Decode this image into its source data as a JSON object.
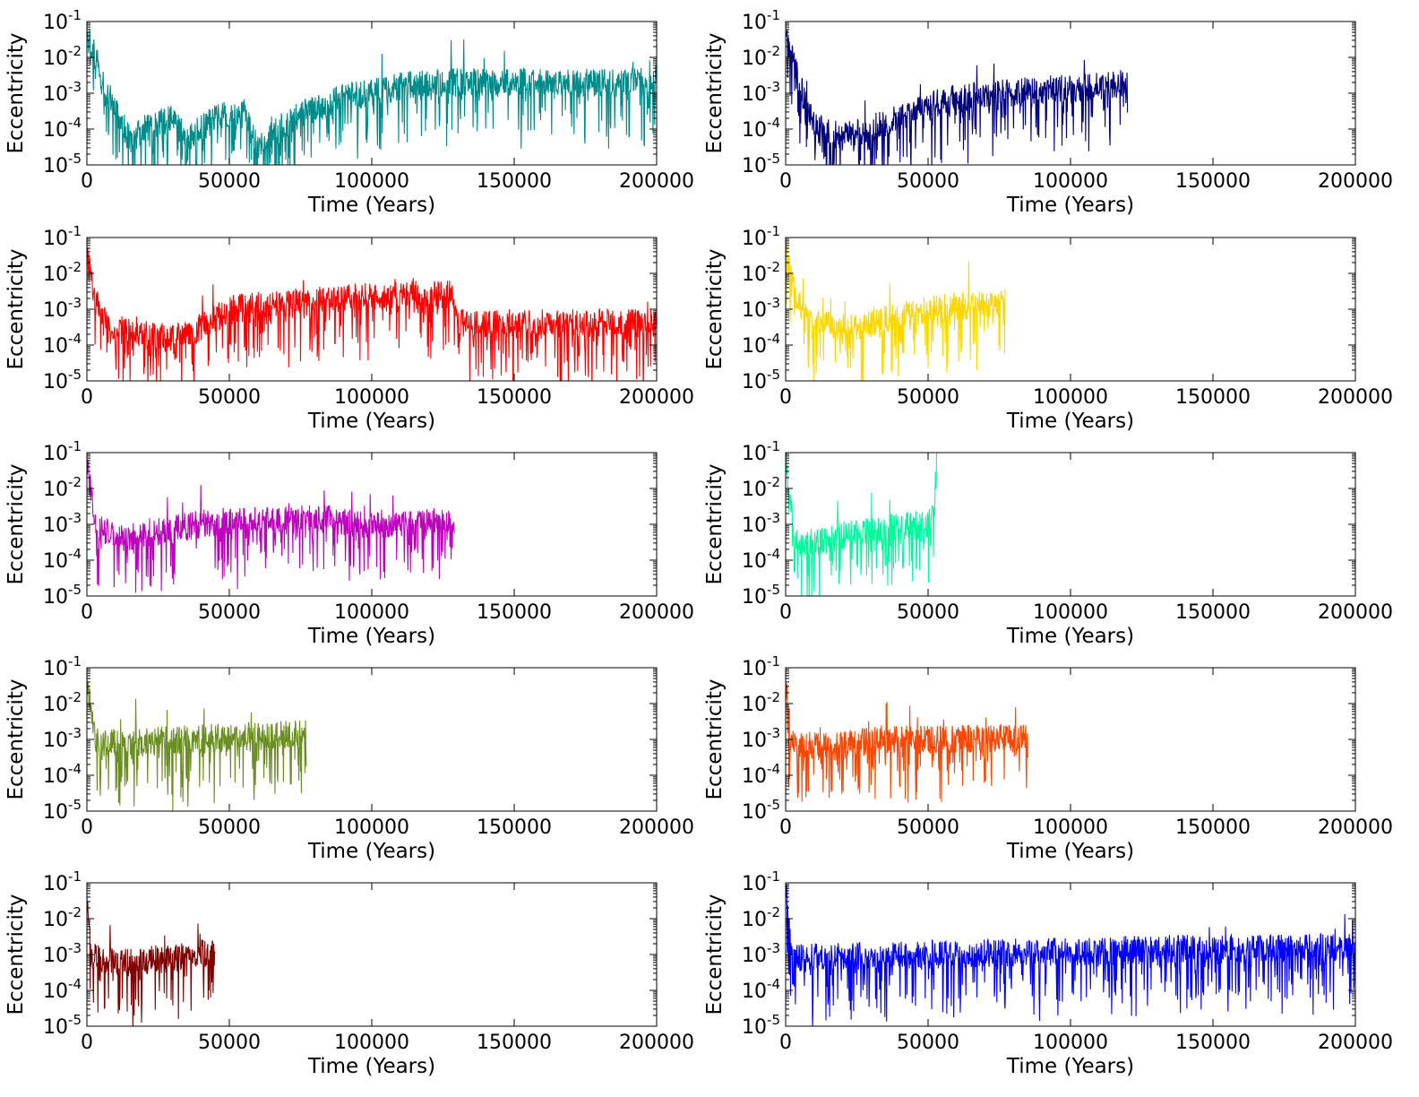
{
  "chart_data": [
    {
      "type": "line",
      "panel": "row1-left",
      "color": "#008b8b",
      "xlabel": "Time (Years)",
      "ylabel": "Eccentricity",
      "xlim": [
        0,
        200000
      ],
      "ylim": [
        1e-05,
        0.1
      ],
      "yscale": "log",
      "x_ticks": [
        "0",
        "50000",
        "100000",
        "150000",
        "200000"
      ],
      "y_ticks": [
        "10-5",
        "10-4",
        "10-3",
        "10-2",
        "10-1"
      ],
      "start_value": 0.04,
      "end_time": 200000,
      "trend": [
        [
          0,
          0.04
        ],
        [
          3000,
          0.01
        ],
        [
          8000,
          0.0008
        ],
        [
          15000,
          5e-05
        ],
        [
          20000,
          0.0001
        ],
        [
          30000,
          0.0002
        ],
        [
          35000,
          5e-05
        ],
        [
          45000,
          0.0002
        ],
        [
          55000,
          0.0003
        ],
        [
          60000,
          3e-05
        ],
        [
          70000,
          0.00015
        ],
        [
          80000,
          0.0004
        ],
        [
          90000,
          0.0008
        ],
        [
          100000,
          0.001
        ],
        [
          110000,
          0.0015
        ],
        [
          120000,
          0.002
        ],
        [
          150000,
          0.002
        ],
        [
          200000,
          0.002
        ]
      ]
    },
    {
      "type": "line",
      "panel": "row1-right",
      "color": "#00007f",
      "xlabel": "Time (Years)",
      "ylabel": "Eccentricity",
      "xlim": [
        0,
        200000
      ],
      "ylim": [
        1e-05,
        0.1
      ],
      "yscale": "log",
      "x_ticks": [
        "0",
        "50000",
        "100000",
        "150000",
        "200000"
      ],
      "y_ticks": [
        "10-5",
        "10-4",
        "10-3",
        "10-2",
        "10-1"
      ],
      "start_value": 0.035,
      "end_time": 120000,
      "trend": [
        [
          0,
          0.035
        ],
        [
          3000,
          0.006
        ],
        [
          8000,
          0.0003
        ],
        [
          15000,
          8e-05
        ],
        [
          20000,
          6e-05
        ],
        [
          30000,
          0.0001
        ],
        [
          40000,
          0.0002
        ],
        [
          55000,
          0.0006
        ],
        [
          70000,
          0.0009
        ],
        [
          90000,
          0.0012
        ],
        [
          110000,
          0.0015
        ],
        [
          120000,
          0.002
        ]
      ]
    },
    {
      "type": "line",
      "panel": "row2-left",
      "color": "#ff0000",
      "xlabel": "Time (Years)",
      "ylabel": "Eccentricity",
      "xlim": [
        0,
        200000
      ],
      "ylim": [
        1e-05,
        0.1
      ],
      "yscale": "log",
      "x_ticks": [
        "0",
        "50000",
        "100000",
        "150000",
        "200000"
      ],
      "y_ticks": [
        "10-5",
        "10-4",
        "10-3",
        "10-2",
        "10-1"
      ],
      "start_value": 0.03,
      "end_time": 200000,
      "trend": [
        [
          0,
          0.03
        ],
        [
          3000,
          0.002
        ],
        [
          8000,
          0.0003
        ],
        [
          20000,
          0.0002
        ],
        [
          30000,
          0.00015
        ],
        [
          40000,
          0.0003
        ],
        [
          50000,
          0.001
        ],
        [
          70000,
          0.0015
        ],
        [
          90000,
          0.002
        ],
        [
          110000,
          0.0025
        ],
        [
          129000,
          0.0025
        ],
        [
          130000,
          0.0004
        ],
        [
          200000,
          0.0004
        ]
      ]
    },
    {
      "type": "line",
      "panel": "row2-right",
      "color": "#ffd700",
      "xlabel": "Time (Years)",
      "ylabel": "Eccentricity",
      "xlim": [
        0,
        200000
      ],
      "ylim": [
        1e-05,
        0.1
      ],
      "yscale": "log",
      "x_ticks": [
        "0",
        "50000",
        "100000",
        "150000",
        "200000"
      ],
      "y_ticks": [
        "10-5",
        "10-4",
        "10-3",
        "10-2",
        "10-1"
      ],
      "start_value": 0.05,
      "end_time": 77000,
      "trend": [
        [
          0,
          0.05
        ],
        [
          3000,
          0.003
        ],
        [
          10000,
          0.0004
        ],
        [
          20000,
          0.0003
        ],
        [
          30000,
          0.0004
        ],
        [
          45000,
          0.0008
        ],
        [
          60000,
          0.0012
        ],
        [
          77000,
          0.0015
        ]
      ]
    },
    {
      "type": "line",
      "panel": "row3-left",
      "color": "#bf00bf",
      "xlabel": "Time (Years)",
      "ylabel": "Eccentricity",
      "xlim": [
        0,
        200000
      ],
      "ylim": [
        1e-05,
        0.1
      ],
      "yscale": "log",
      "x_ticks": [
        "0",
        "50000",
        "100000",
        "150000",
        "200000"
      ],
      "y_ticks": [
        "10-5",
        "10-4",
        "10-3",
        "10-2",
        "10-1"
      ],
      "start_value": 0.05,
      "end_time": 129000,
      "trend": [
        [
          0,
          0.05
        ],
        [
          3000,
          0.001
        ],
        [
          10000,
          0.0004
        ],
        [
          25000,
          0.0006
        ],
        [
          45000,
          0.0012
        ],
        [
          60000,
          0.0012
        ],
        [
          80000,
          0.0015
        ],
        [
          100000,
          0.001
        ],
        [
          129000,
          0.0012
        ]
      ]
    },
    {
      "type": "line",
      "panel": "row3-right",
      "color": "#00fa9a",
      "xlabel": "Time (Years)",
      "ylabel": "Eccentricity",
      "xlim": [
        0,
        200000
      ],
      "ylim": [
        1e-05,
        0.1
      ],
      "yscale": "log",
      "x_ticks": [
        "0",
        "50000",
        "100000",
        "150000",
        "200000"
      ],
      "y_ticks": [
        "10-5",
        "10-4",
        "10-3",
        "10-2",
        "10-1"
      ],
      "start_value": 0.06,
      "end_time": 53000,
      "trend": [
        [
          0,
          0.06
        ],
        [
          1500,
          0.01
        ],
        [
          3000,
          0.0003
        ],
        [
          10000,
          0.0003
        ],
        [
          25000,
          0.0006
        ],
        [
          40000,
          0.0009
        ],
        [
          50000,
          0.001
        ],
        [
          52000,
          0.002
        ],
        [
          53000,
          0.05
        ]
      ]
    },
    {
      "type": "line",
      "panel": "row4-left",
      "color": "#6b8e23",
      "xlabel": "Time (Years)",
      "ylabel": "Eccentricity",
      "xlim": [
        0,
        200000
      ],
      "ylim": [
        1e-05,
        0.1
      ],
      "yscale": "log",
      "x_ticks": [
        "0",
        "50000",
        "100000",
        "150000",
        "200000"
      ],
      "y_ticks": [
        "10-5",
        "10-4",
        "10-3",
        "10-2",
        "10-1"
      ],
      "start_value": 0.05,
      "end_time": 77000,
      "trend": [
        [
          0,
          0.05
        ],
        [
          3000,
          0.0008
        ],
        [
          15000,
          0.0008
        ],
        [
          35000,
          0.001
        ],
        [
          55000,
          0.0012
        ],
        [
          77000,
          0.0015
        ]
      ]
    },
    {
      "type": "line",
      "panel": "row4-right",
      "color": "#ff4500",
      "xlabel": "Time (Years)",
      "ylabel": "Eccentricity",
      "xlim": [
        0,
        200000
      ],
      "ylim": [
        1e-05,
        0.1
      ],
      "yscale": "log",
      "x_ticks": [
        "0",
        "50000",
        "100000",
        "150000",
        "200000"
      ],
      "y_ticks": [
        "10-5",
        "10-4",
        "10-3",
        "10-2",
        "10-1"
      ],
      "start_value": 0.04,
      "end_time": 85000,
      "trend": [
        [
          0,
          0.04
        ],
        [
          2000,
          0.0008
        ],
        [
          15000,
          0.0006
        ],
        [
          30000,
          0.0009
        ],
        [
          45000,
          0.001
        ],
        [
          60000,
          0.001
        ],
        [
          85000,
          0.0012
        ]
      ]
    },
    {
      "type": "line",
      "panel": "row5-left",
      "color": "#800000",
      "xlabel": "Time (Years)",
      "ylabel": "Eccentricity",
      "xlim": [
        0,
        200000
      ],
      "ylim": [
        1e-05,
        0.1
      ],
      "yscale": "log",
      "x_ticks": [
        "0",
        "50000",
        "100000",
        "150000",
        "200000"
      ],
      "y_ticks": [
        "10-5",
        "10-4",
        "10-3",
        "10-2",
        "10-1"
      ],
      "start_value": 0.04,
      "end_time": 45000,
      "trend": [
        [
          0,
          0.04
        ],
        [
          1500,
          0.0008
        ],
        [
          15000,
          0.0006
        ],
        [
          30000,
          0.0008
        ],
        [
          45000,
          0.0012
        ]
      ]
    },
    {
      "type": "line",
      "panel": "row5-right",
      "color": "#0000ff",
      "xlabel": "Time (Years)",
      "ylabel": "Eccentricity",
      "xlim": [
        0,
        200000
      ],
      "ylim": [
        1e-05,
        0.1
      ],
      "yscale": "log",
      "x_ticks": [
        "0",
        "50000",
        "100000",
        "150000",
        "200000"
      ],
      "y_ticks": [
        "10-5",
        "10-4",
        "10-3",
        "10-2",
        "10-1"
      ],
      "start_value": 0.09,
      "end_time": 200000,
      "trend": [
        [
          0,
          0.09
        ],
        [
          2000,
          0.0008
        ],
        [
          50000,
          0.001
        ],
        [
          100000,
          0.0012
        ],
        [
          150000,
          0.0015
        ],
        [
          200000,
          0.0015
        ]
      ]
    }
  ]
}
